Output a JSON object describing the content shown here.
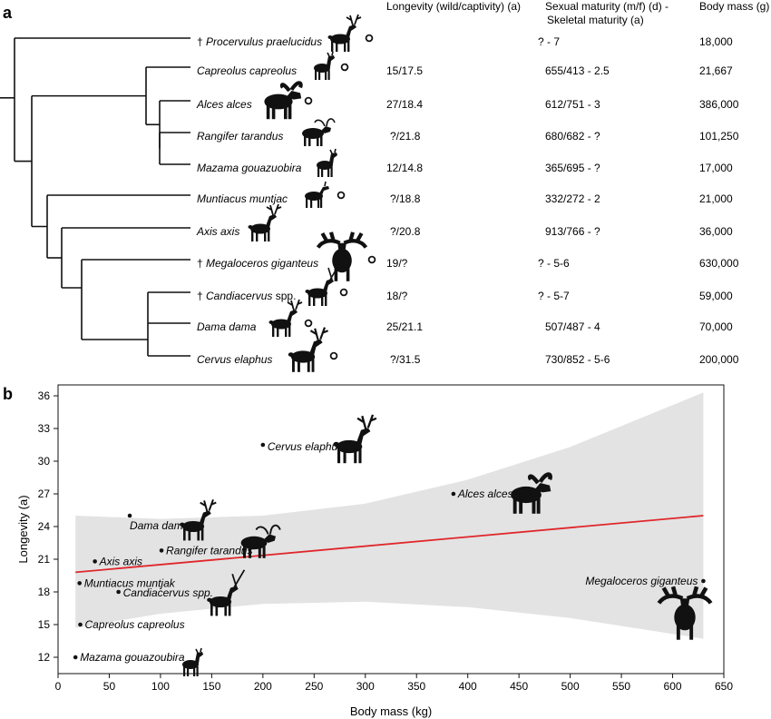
{
  "panel_a": {
    "label": "a",
    "headers": {
      "longevity": "Longevity (wild/captivity) (a)",
      "maturity_line1": "Sexual maturity (m/f) (d) -",
      "maturity_line2": "Skeletal maturity (a)",
      "mass": "Body mass (g)"
    },
    "rows": [
      {
        "extinct": true,
        "name": "Procervulus praelucidus",
        "suffix": "",
        "icon": "deer-silhouette-icon",
        "marker": true,
        "longevity": "",
        "maturity": "? - 7",
        "mass": "18,000"
      },
      {
        "extinct": false,
        "name": "Capreolus capreolus",
        "suffix": "",
        "icon": "roe-deer-icon",
        "marker": true,
        "longevity": "15/17.5",
        "maturity": "655/413 - 2.5",
        "mass": "21,667"
      },
      {
        "extinct": false,
        "name": "Alces alces",
        "suffix": "",
        "icon": "moose-icon",
        "marker": true,
        "longevity": "27/18.4",
        "maturity": "612/751 - 3",
        "mass": "386,000"
      },
      {
        "extinct": false,
        "name": "Rangifer tarandus",
        "suffix": "",
        "icon": "reindeer-icon",
        "marker": false,
        "longevity": "?/21.8",
        "maturity": "680/682 - ?",
        "mass": "101,250"
      },
      {
        "extinct": false,
        "name": "Mazama gouazuobira",
        "suffix": "",
        "icon": "brocket-deer-icon",
        "marker": false,
        "longevity": "12/14.8",
        "maturity": "365/695 - ?",
        "mass": "17,000"
      },
      {
        "extinct": false,
        "name": "Muntiacus muntjac",
        "suffix": "",
        "icon": "muntjac-icon",
        "marker": true,
        "longevity": "?/18.8",
        "maturity": "332/272 - 2",
        "mass": "21,000"
      },
      {
        "extinct": false,
        "name": "Axis axis",
        "suffix": "",
        "icon": "chital-icon",
        "marker": false,
        "longevity": "?/20.8",
        "maturity": "913/766 - ?",
        "mass": "36,000"
      },
      {
        "extinct": true,
        "name": "Megaloceros giganteus",
        "suffix": "",
        "icon": "giant-deer-icon",
        "marker": true,
        "longevity": "19/?",
        "maturity": "? - 5-6",
        "mass": "630,000"
      },
      {
        "extinct": true,
        "name": "Candiacervus",
        "suffix": " spp.",
        "icon": "candiacervus-icon",
        "marker": true,
        "longevity": "18/?",
        "maturity": "? - 5-7",
        "mass": "59,000"
      },
      {
        "extinct": false,
        "name": "Dama dama",
        "suffix": "",
        "icon": "fallow-deer-icon",
        "marker": true,
        "longevity": "25/21.1",
        "maturity": "507/487 - 4",
        "mass": "70,000"
      },
      {
        "extinct": false,
        "name": "Cervus elaphus",
        "suffix": "",
        "icon": "red-deer-icon",
        "marker": true,
        "longevity": "?/31.5",
        "maturity": "730/852 - 5-6",
        "mass": "200,000"
      }
    ]
  },
  "chart_data": {
    "type": "scatter",
    "panel_label": "b",
    "title": "",
    "xlabel": "Body mass (kg)",
    "ylabel": "Longevity (a)",
    "xlim": [
      0,
      650
    ],
    "ylim": [
      10.5,
      37
    ],
    "xticks": [
      0,
      50,
      100,
      150,
      200,
      250,
      300,
      350,
      400,
      450,
      500,
      550,
      600,
      650
    ],
    "yticks": [
      12,
      15,
      18,
      21,
      24,
      27,
      30,
      33,
      36
    ],
    "grid": false,
    "points": [
      {
        "name": "Cervus elaphus",
        "x": 200,
        "y": 31.5,
        "label_side": "right",
        "icon": "red-deer-icon"
      },
      {
        "name": "Alces alces",
        "x": 386,
        "y": 27,
        "label_side": "right",
        "icon": "moose-icon"
      },
      {
        "name": "Dama dama",
        "x": 70,
        "y": 25,
        "label_side": "below",
        "icon": "fallow-deer-icon"
      },
      {
        "name": "Rangifer tarandus",
        "x": 101,
        "y": 21.8,
        "label_side": "right",
        "icon": "reindeer-icon"
      },
      {
        "name": "Axis axis",
        "x": 36,
        "y": 20.8,
        "label_side": "right",
        "icon": ""
      },
      {
        "name": "Muntiacus muntjak",
        "x": 21,
        "y": 18.8,
        "label_side": "right",
        "icon": ""
      },
      {
        "name": "Candiacervus spp.",
        "x": 59,
        "y": 18,
        "label_side": "right",
        "icon": "candiacervus-icon"
      },
      {
        "name": "Megaloceros giganteus",
        "x": 630,
        "y": 19,
        "label_side": "left",
        "icon": "giant-deer-icon"
      },
      {
        "name": "Capreolus capreolus",
        "x": 21.7,
        "y": 15,
        "label_side": "right",
        "icon": ""
      },
      {
        "name": "Mazama gouazoubira",
        "x": 17,
        "y": 12,
        "label_side": "right",
        "icon": "brocket-deer-icon"
      }
    ],
    "regression": {
      "x": [
        17,
        630
      ],
      "y": [
        19.8,
        25.0
      ],
      "color": "#e0272b"
    },
    "confidence_band": {
      "x": [
        17,
        100,
        200,
        300,
        400,
        500,
        630
      ],
      "upper": [
        25.0,
        24.7,
        25.0,
        26.1,
        28.3,
        31.3,
        36.3
      ],
      "lower": [
        14.7,
        16.0,
        16.9,
        17.1,
        16.6,
        15.6,
        13.7
      ],
      "color": "#e3e3e3"
    }
  },
  "colors": {
    "regression": "#e0272b",
    "band": "#e3e3e3",
    "ink": "#111111"
  }
}
